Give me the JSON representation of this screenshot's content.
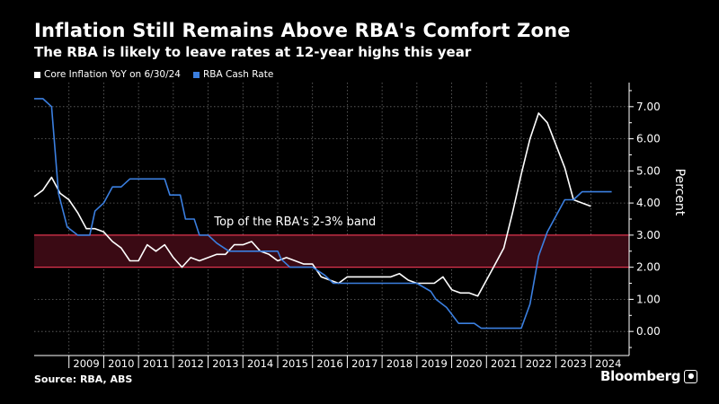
{
  "header": {
    "title": "Inflation Still Remains Above RBA's Comfort Zone",
    "subtitle": "The RBA is likely to leave rates at 12-year highs this year"
  },
  "footer": {
    "source": "Source: RBA, ABS",
    "brand": "Bloomberg"
  },
  "colors": {
    "background": "#000000",
    "core_inflation": "#ffffff",
    "cash_rate": "#3b7fe0",
    "band_fill": "#3a0a14",
    "band_edge": "#e0344e"
  },
  "chart_data": {
    "type": "line",
    "title": "Inflation Still Remains Above RBA's Comfort Zone",
    "subtitle": "The RBA is likely to leave rates at 12-year highs this year",
    "ylabel": "Percent",
    "ylim": [
      -0.75,
      7.75
    ],
    "yticks": [
      0,
      1,
      2,
      3,
      4,
      5,
      6,
      7
    ],
    "ytick_labels": [
      "0.00",
      "1.00",
      "2.00",
      "3.00",
      "4.00",
      "5.00",
      "6.00",
      "7.00"
    ],
    "xlim": [
      2008.0,
      2025.1
    ],
    "xticks": [
      2009,
      2010,
      2011,
      2012,
      2013,
      2014,
      2015,
      2016,
      2017,
      2018,
      2019,
      2020,
      2021,
      2022,
      2023,
      2024
    ],
    "xtick_labels": [
      "2009",
      "2010",
      "2011",
      "2012",
      "2013",
      "2014",
      "2015",
      "2016",
      "2017",
      "2018",
      "2019",
      "2020",
      "2021",
      "2022",
      "2023",
      "2024"
    ],
    "grid": true,
    "y_axis_side": "right",
    "legend_position": "top-left",
    "band": {
      "from": 2.0,
      "to": 3.0,
      "label": "Top of the RBA's 2-3% band"
    },
    "series": [
      {
        "name": "Core Inflation YoY on 6/30/24",
        "color": "#ffffff",
        "points": [
          [
            2008.0,
            4.2
          ],
          [
            2008.25,
            4.4
          ],
          [
            2008.5,
            4.8
          ],
          [
            2008.75,
            4.3
          ],
          [
            2009.0,
            4.1
          ],
          [
            2009.25,
            3.7
          ],
          [
            2009.5,
            3.2
          ],
          [
            2009.75,
            3.2
          ],
          [
            2010.0,
            3.1
          ],
          [
            2010.25,
            2.8
          ],
          [
            2010.5,
            2.6
          ],
          [
            2010.75,
            2.2
          ],
          [
            2011.0,
            2.2
          ],
          [
            2011.25,
            2.7
          ],
          [
            2011.5,
            2.5
          ],
          [
            2011.75,
            2.7
          ],
          [
            2012.0,
            2.3
          ],
          [
            2012.25,
            2.0
          ],
          [
            2012.5,
            2.3
          ],
          [
            2012.75,
            2.2
          ],
          [
            2013.0,
            2.3
          ],
          [
            2013.25,
            2.4
          ],
          [
            2013.5,
            2.4
          ],
          [
            2013.75,
            2.7
          ],
          [
            2014.0,
            2.7
          ],
          [
            2014.25,
            2.8
          ],
          [
            2014.5,
            2.5
          ],
          [
            2014.75,
            2.4
          ],
          [
            2015.0,
            2.2
          ],
          [
            2015.25,
            2.3
          ],
          [
            2015.5,
            2.2
          ],
          [
            2015.75,
            2.1
          ],
          [
            2016.0,
            2.1
          ],
          [
            2016.25,
            1.7
          ],
          [
            2016.5,
            1.6
          ],
          [
            2016.75,
            1.5
          ],
          [
            2017.0,
            1.7
          ],
          [
            2017.25,
            1.7
          ],
          [
            2017.5,
            1.7
          ],
          [
            2017.75,
            1.7
          ],
          [
            2018.0,
            1.7
          ],
          [
            2018.25,
            1.7
          ],
          [
            2018.5,
            1.8
          ],
          [
            2018.75,
            1.6
          ],
          [
            2019.0,
            1.5
          ],
          [
            2019.25,
            1.5
          ],
          [
            2019.5,
            1.5
          ],
          [
            2019.75,
            1.7
          ],
          [
            2020.0,
            1.3
          ],
          [
            2020.25,
            1.2
          ],
          [
            2020.5,
            1.2
          ],
          [
            2020.75,
            1.1
          ],
          [
            2021.0,
            1.6
          ],
          [
            2021.25,
            2.1
          ],
          [
            2021.5,
            2.6
          ],
          [
            2021.75,
            3.7
          ],
          [
            2022.0,
            4.9
          ],
          [
            2022.25,
            6.0
          ],
          [
            2022.5,
            6.8
          ],
          [
            2022.75,
            6.5
          ],
          [
            2023.0,
            5.8
          ],
          [
            2023.25,
            5.1
          ],
          [
            2023.5,
            4.1
          ],
          [
            2023.75,
            4.0
          ],
          [
            2024.0,
            3.9
          ]
        ]
      },
      {
        "name": "RBA Cash Rate",
        "color": "#3b7fe0",
        "points": [
          [
            2008.0,
            7.25
          ],
          [
            2008.25,
            7.25
          ],
          [
            2008.5,
            7.0
          ],
          [
            2008.7,
            4.3
          ],
          [
            2008.95,
            3.25
          ],
          [
            2009.25,
            3.0
          ],
          [
            2009.6,
            3.0
          ],
          [
            2009.75,
            3.75
          ],
          [
            2010.0,
            4.0
          ],
          [
            2010.25,
            4.5
          ],
          [
            2010.5,
            4.5
          ],
          [
            2010.75,
            4.75
          ],
          [
            2011.0,
            4.75
          ],
          [
            2011.5,
            4.75
          ],
          [
            2011.75,
            4.75
          ],
          [
            2011.9,
            4.25
          ],
          [
            2012.2,
            4.25
          ],
          [
            2012.35,
            3.5
          ],
          [
            2012.6,
            3.5
          ],
          [
            2012.75,
            3.0
          ],
          [
            2013.0,
            3.0
          ],
          [
            2013.25,
            2.75
          ],
          [
            2013.6,
            2.5
          ],
          [
            2014.0,
            2.5
          ],
          [
            2015.0,
            2.5
          ],
          [
            2015.1,
            2.25
          ],
          [
            2015.35,
            2.0
          ],
          [
            2016.0,
            2.0
          ],
          [
            2016.35,
            1.75
          ],
          [
            2016.6,
            1.5
          ],
          [
            2017.0,
            1.5
          ],
          [
            2018.0,
            1.5
          ],
          [
            2019.0,
            1.5
          ],
          [
            2019.4,
            1.25
          ],
          [
            2019.55,
            1.0
          ],
          [
            2019.85,
            0.75
          ],
          [
            2020.2,
            0.25
          ],
          [
            2020.65,
            0.25
          ],
          [
            2020.85,
            0.1
          ],
          [
            2021.5,
            0.1
          ],
          [
            2022.0,
            0.1
          ],
          [
            2022.25,
            0.85
          ],
          [
            2022.5,
            2.35
          ],
          [
            2022.75,
            3.1
          ],
          [
            2023.0,
            3.6
          ],
          [
            2023.25,
            4.1
          ],
          [
            2023.5,
            4.1
          ],
          [
            2023.75,
            4.35
          ],
          [
            2024.0,
            4.35
          ],
          [
            2024.6,
            4.35
          ]
        ]
      }
    ]
  }
}
